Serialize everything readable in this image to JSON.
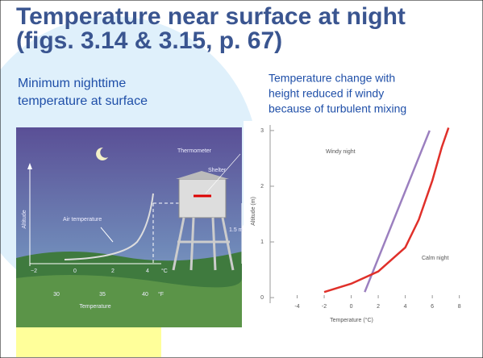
{
  "slide": {
    "title": [
      "Temperature near surface at night",
      "(figs. 3.14 & 3.15, p. 67)"
    ],
    "left_caption": [
      "Minimum nighttime",
      "temperature at surface"
    ],
    "right_caption": [
      "Temperature change with",
      "height reduced if windy",
      "because of turbulent mixing"
    ]
  },
  "left_figure": {
    "thermometer": "Thermometer",
    "shelter": "Shelter",
    "air_temperature": "Air temperature",
    "altitude": "Altitude",
    "height": "1.5 m",
    "celsius_ticks": [
      "−2",
      "0",
      "2",
      "4"
    ],
    "celsius_unit": "°C",
    "fahrenheit_ticks": [
      "30",
      "35",
      "40"
    ],
    "fahrenheit_unit": "°F",
    "xlabel": "Temperature"
  },
  "chart_data": {
    "type": "line",
    "xlabel": "Temperature (°C)",
    "ylabel": "Altitude (m)",
    "xlim": [
      -6,
      8.2
    ],
    "ylim": [
      -0.1,
      3.1
    ],
    "xticks": [
      -4,
      -2,
      0,
      2,
      4,
      6,
      8
    ],
    "yticks": [
      0,
      1,
      2,
      3
    ],
    "grid": false,
    "series": [
      {
        "name": "Windy night",
        "color": "#9b7fbf",
        "x": [
          1.0,
          5.8
        ],
        "values": [
          0.1,
          3.0
        ]
      },
      {
        "name": "Calm night",
        "color": "#e0302a",
        "x": [
          -2,
          0,
          2,
          4,
          5,
          6,
          6.7,
          7.2
        ],
        "values": [
          0.1,
          0.25,
          0.47,
          0.9,
          1.4,
          2.1,
          2.7,
          3.05
        ]
      }
    ]
  }
}
